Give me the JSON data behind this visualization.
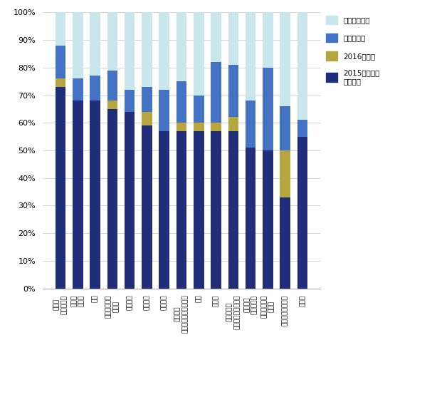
{
  "categories": [
    "電力・\nガス・水道",
    "流通・\n小売り",
    "商社",
    "金融・証券・\n保険業",
    "不動産業",
    "サービス",
    "医療機関",
    "メーカー\n（電気・電子・機械）",
    "運輸",
    "建設業",
    "情報・通信\n（ソフト・ハード）",
    "メーカー\n（その他）",
    "広告・出版・\n印刷業",
    "教育・学習支援業",
    "その他"
  ],
  "bar2015": [
    73,
    68,
    68,
    65,
    64,
    59,
    57,
    57,
    57,
    57,
    57,
    51,
    50,
    33,
    55
  ],
  "bar2016": [
    3,
    0,
    0,
    3,
    0,
    5,
    0,
    3,
    3,
    3,
    5,
    0,
    0,
    17,
    0
  ],
  "barUndecided": [
    12,
    8,
    9,
    11,
    8,
    9,
    15,
    15,
    10,
    22,
    19,
    17,
    30,
    16,
    6
  ],
  "barNoplan": [
    12,
    24,
    23,
    21,
    28,
    27,
    28,
    25,
    30,
    18,
    19,
    32,
    20,
    34,
    39
  ],
  "color2015": "#1f2d7a",
  "color2016": "#b5a642",
  "colorUndecided": "#4472c4",
  "colorNoplan": "#c8e6ec",
  "legend_labels": [
    "導入予定無し",
    "時期は未定",
    "2016年以降",
    "2015年までに\n初期導入"
  ],
  "ylim": [
    0,
    100
  ],
  "ylabel_ticks": [
    "0%",
    "10%",
    "20%",
    "30%",
    "40%",
    "50%",
    "60%",
    "70%",
    "80%",
    "90%",
    "100%"
  ]
}
